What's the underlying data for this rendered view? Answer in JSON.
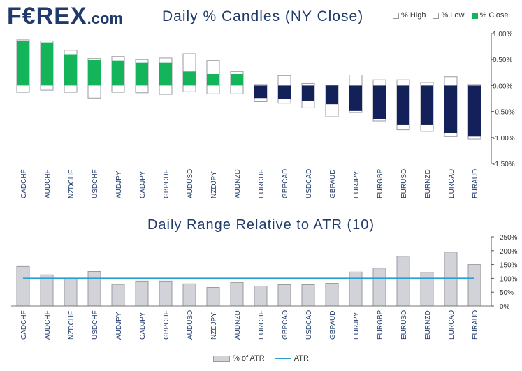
{
  "header": {
    "logo_main": "F€REX",
    "logo_suffix": ".com",
    "legend": {
      "high": "% High",
      "low": "% Low",
      "close": "% Close"
    }
  },
  "legend2": {
    "bar": "% of ATR",
    "line": "ATR"
  },
  "colors": {
    "bullish": "#13b45a",
    "bearish": "#14205a",
    "range_fill": "#d2d3d8",
    "atr_line": "#2a9fd4",
    "title": "#1f3a6b"
  },
  "chart_data": [
    {
      "type": "bar",
      "title": "Daily % Candles (NY Close)",
      "categories": [
        "CADCHF",
        "AUDCHF",
        "NZDCHF",
        "USDCHF",
        "AUDJPY",
        "CADJPY",
        "GBPCHF",
        "AUDUSD",
        "NZDJPY",
        "AUDNZD",
        "EURCHF",
        "GBPCAD",
        "USDCAD",
        "GBPAUD",
        "EURJPY",
        "EURGBP",
        "EURUSD",
        "EURNZD",
        "EURCAD",
        "EURAUD"
      ],
      "series": [
        {
          "name": "% High",
          "values": [
            0.88,
            0.86,
            0.68,
            0.52,
            0.56,
            0.5,
            0.53,
            0.61,
            0.48,
            0.27,
            0.02,
            0.19,
            0.04,
            0.0,
            0.2,
            0.11,
            0.11,
            0.06,
            0.17,
            0.02
          ]
        },
        {
          "name": "% Low",
          "values": [
            -0.13,
            -0.09,
            -0.13,
            -0.24,
            -0.13,
            -0.14,
            -0.17,
            -0.12,
            -0.16,
            -0.16,
            -0.31,
            -0.34,
            -0.43,
            -0.6,
            -0.52,
            -0.68,
            -0.85,
            -0.88,
            -0.98,
            -1.03
          ]
        },
        {
          "name": "% Close",
          "values": [
            0.86,
            0.83,
            0.59,
            0.49,
            0.48,
            0.44,
            0.44,
            0.27,
            0.22,
            0.22,
            -0.24,
            -0.25,
            -0.29,
            -0.36,
            -0.49,
            -0.64,
            -0.76,
            -0.76,
            -0.92,
            -0.98
          ]
        }
      ],
      "ylim": [
        -1.5,
        1.0
      ],
      "yticks": [
        "1.00%",
        "0.50%",
        "0.00%",
        "-0.50%",
        "-1.00%",
        "-1.50%"
      ],
      "grid": false,
      "legend": "top-right"
    },
    {
      "type": "bar",
      "title": "Daily Range Relative to ATR (10)",
      "categories": [
        "CADCHF",
        "AUDCHF",
        "NZDCHF",
        "USDCHF",
        "AUDJPY",
        "CADJPY",
        "GBPCHF",
        "AUDUSD",
        "NZDJPY",
        "AUDNZD",
        "EURCHF",
        "GBPCAD",
        "USDCAD",
        "GBPAUD",
        "EURJPY",
        "EURGBP",
        "EURUSD",
        "EURNZD",
        "EURCAD",
        "EURAUD"
      ],
      "series": [
        {
          "name": "% of ATR",
          "values": [
            143,
            113,
            97,
            125,
            78,
            90,
            90,
            80,
            67,
            85,
            72,
            77,
            77,
            82,
            123,
            137,
            180,
            122,
            195,
            150
          ]
        },
        {
          "name": "ATR",
          "values": [
            100,
            100,
            100,
            100,
            100,
            100,
            100,
            100,
            100,
            100,
            100,
            100,
            100,
            100,
            100,
            100,
            100,
            100,
            100,
            100
          ]
        }
      ],
      "ylim": [
        0,
        250
      ],
      "yticks": [
        "250%",
        "200%",
        "150%",
        "100%",
        "50%",
        "0%"
      ],
      "grid": false,
      "legend": "bottom-center"
    }
  ]
}
